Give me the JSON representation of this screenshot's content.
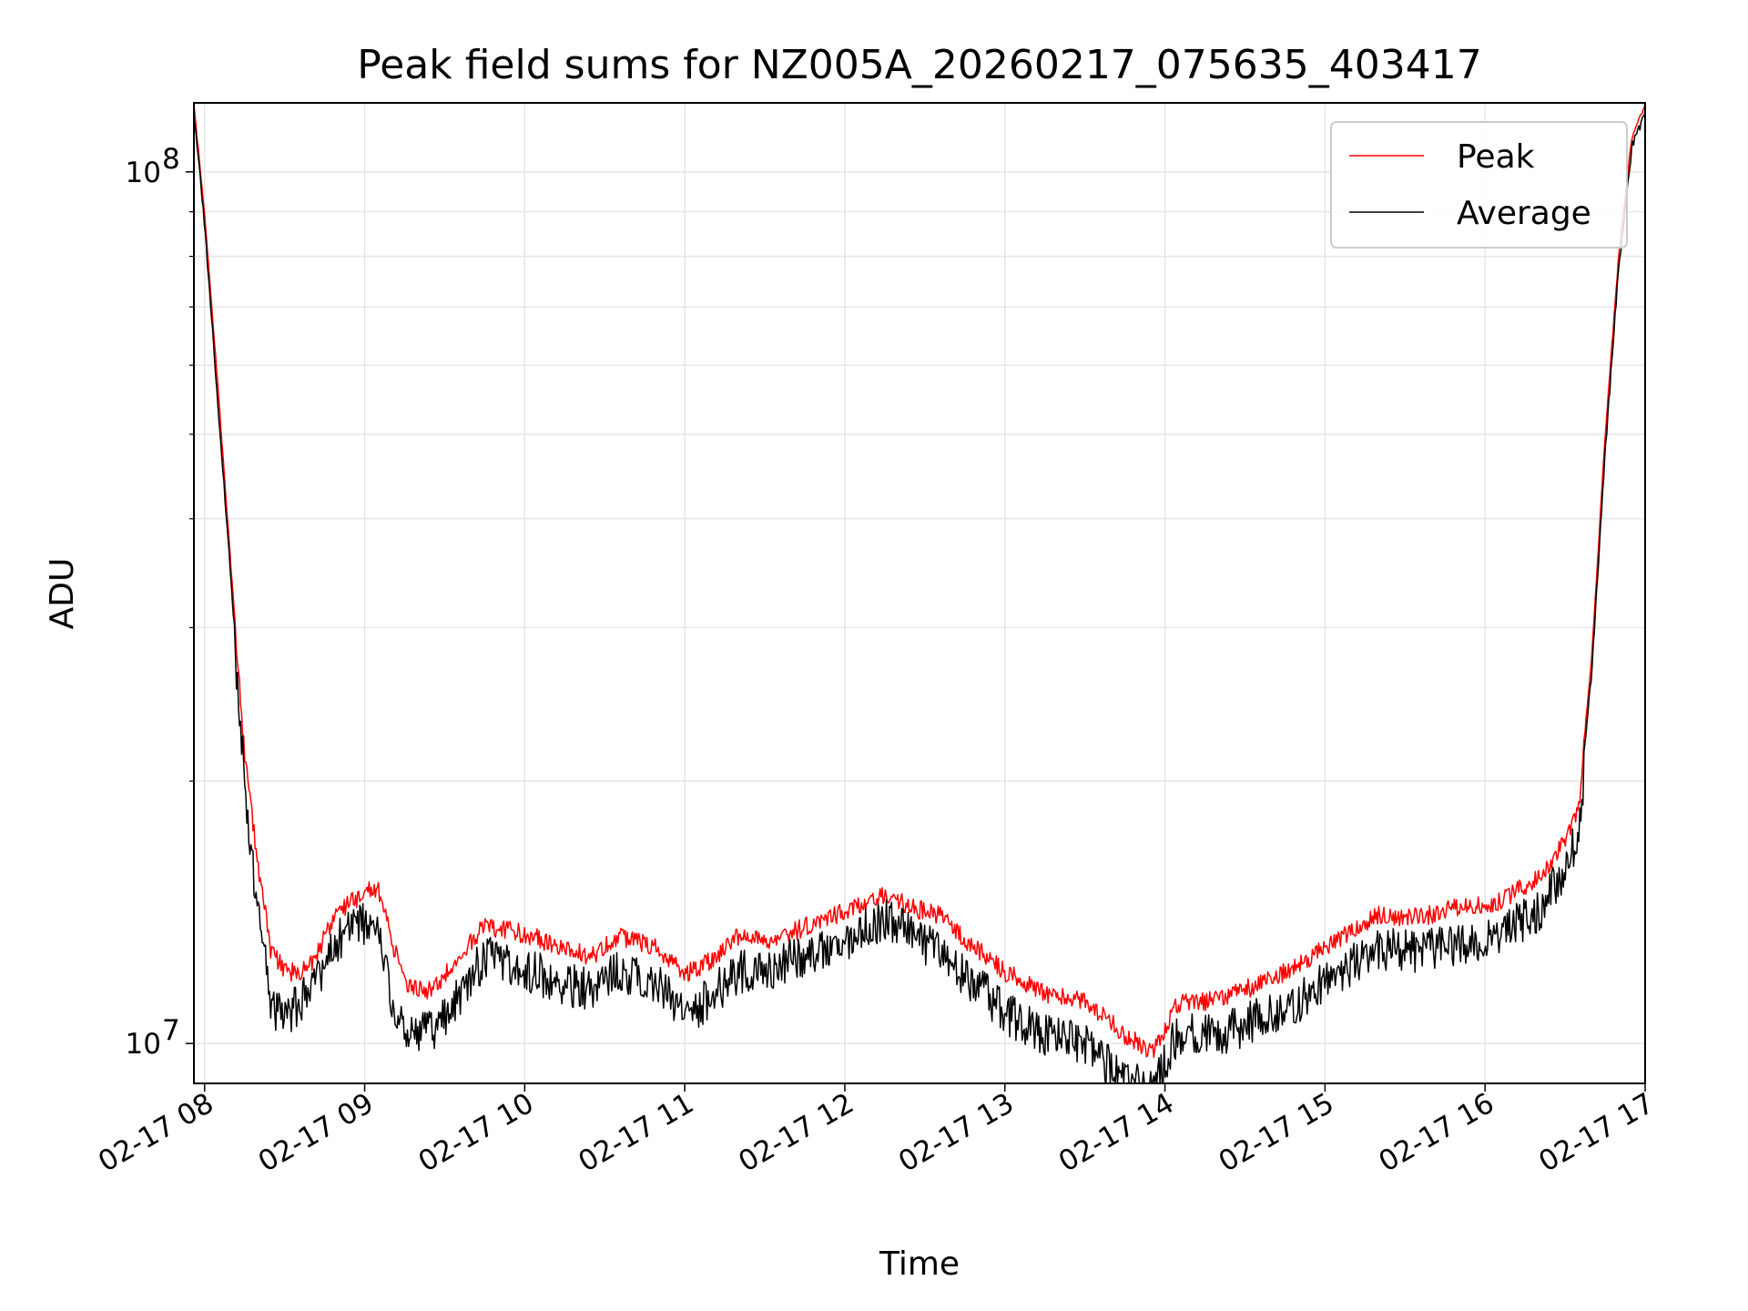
{
  "chart_data": {
    "type": "line",
    "title": "Peak field sums for NZ005A_20260217_075635_403417",
    "xlabel": "Time",
    "ylabel": "ADU",
    "yscale": "log",
    "grid": true,
    "legend_position": "top-right",
    "xlim": [
      "2026-02-17 07:56",
      "2026-02-17 17:00"
    ],
    "ylim": [
      9000000,
      120000000
    ],
    "x_ticks": [
      "02-17 08",
      "02-17 09",
      "02-17 10",
      "02-17 11",
      "02-17 12",
      "02-17 13",
      "02-17 14",
      "02-17 15",
      "02-17 16",
      "02-17 17"
    ],
    "y_ticks": [
      {
        "base": "10",
        "exp": "7",
        "value": 10000000
      },
      {
        "base": "10",
        "exp": "8",
        "value": 100000000
      }
    ],
    "x": [
      "2026-02-17 07:56",
      "2026-02-17 08:00",
      "2026-02-17 08:05",
      "2026-02-17 08:10",
      "2026-02-17 08:15",
      "2026-02-17 08:20",
      "2026-02-17 08:25",
      "2026-02-17 08:30",
      "2026-02-17 08:35",
      "2026-02-17 08:40",
      "2026-02-17 08:50",
      "2026-02-17 09:00",
      "2026-02-17 09:05",
      "2026-02-17 09:10",
      "2026-02-17 09:15",
      "2026-02-17 09:25",
      "2026-02-17 09:35",
      "2026-02-17 09:45",
      "2026-02-17 10:00",
      "2026-02-17 10:15",
      "2026-02-17 10:25",
      "2026-02-17 10:35",
      "2026-02-17 10:50",
      "2026-02-17 11:00",
      "2026-02-17 11:10",
      "2026-02-17 11:20",
      "2026-02-17 11:35",
      "2026-02-17 11:50",
      "2026-02-17 12:00",
      "2026-02-17 12:15",
      "2026-02-17 12:25",
      "2026-02-17 12:35",
      "2026-02-17 12:45",
      "2026-02-17 13:00",
      "2026-02-17 13:15",
      "2026-02-17 13:30",
      "2026-02-17 13:45",
      "2026-02-17 13:55",
      "2026-02-17 14:05",
      "2026-02-17 14:20",
      "2026-02-17 14:35",
      "2026-02-17 14:50",
      "2026-02-17 15:05",
      "2026-02-17 15:20",
      "2026-02-17 15:35",
      "2026-02-17 15:50",
      "2026-02-17 16:05",
      "2026-02-17 16:20",
      "2026-02-17 16:30",
      "2026-02-17 16:35",
      "2026-02-17 16:40",
      "2026-02-17 16:45",
      "2026-02-17 16:50",
      "2026-02-17 16:55",
      "2026-02-17 17:00"
    ],
    "series": [
      {
        "name": "Peak",
        "color": "#ff0000",
        "values": [
          120000000,
          90000000,
          57000000,
          35000000,
          22000000,
          16500000,
          13000000,
          12500000,
          12300000,
          12700000,
          14500000,
          15300000,
          15500000,
          13500000,
          12000000,
          11800000,
          12800000,
          14000000,
          13700000,
          13200000,
          12900000,
          13600000,
          13200000,
          12300000,
          12800000,
          13600000,
          13500000,
          14200000,
          14500000,
          15200000,
          14700000,
          14400000,
          13500000,
          12400000,
          11700000,
          11500000,
          10500000,
          10000000,
          11400000,
          11500000,
          12000000,
          12600000,
          13500000,
          14400000,
          14300000,
          14700000,
          14900000,
          15900000,
          17500000,
          19000000,
          28000000,
          50000000,
          80000000,
          110000000,
          120000000
        ]
      },
      {
        "name": "Average",
        "color": "#000000",
        "values": [
          118000000,
          88000000,
          55000000,
          34000000,
          21000000,
          15000000,
          11600000,
          11400000,
          11700000,
          12300000,
          13900000,
          14600000,
          14400000,
          12000000,
          11000000,
          10900000,
          12000000,
          13300000,
          12900000,
          12400000,
          12200000,
          12900000,
          12400000,
          11300000,
          12000000,
          12800000,
          13000000,
          13600000,
          13900000,
          14700000,
          14100000,
          13500000,
          12700000,
          11500000,
          10800000,
          10600000,
          9600000,
          9400000,
          10900000,
          10800000,
          11300000,
          11800000,
          12800000,
          13600000,
          13500000,
          13800000,
          14100000,
          15000000,
          16800000,
          18500000,
          27000000,
          48000000,
          78000000,
          108000000,
          118000000
        ]
      }
    ]
  }
}
